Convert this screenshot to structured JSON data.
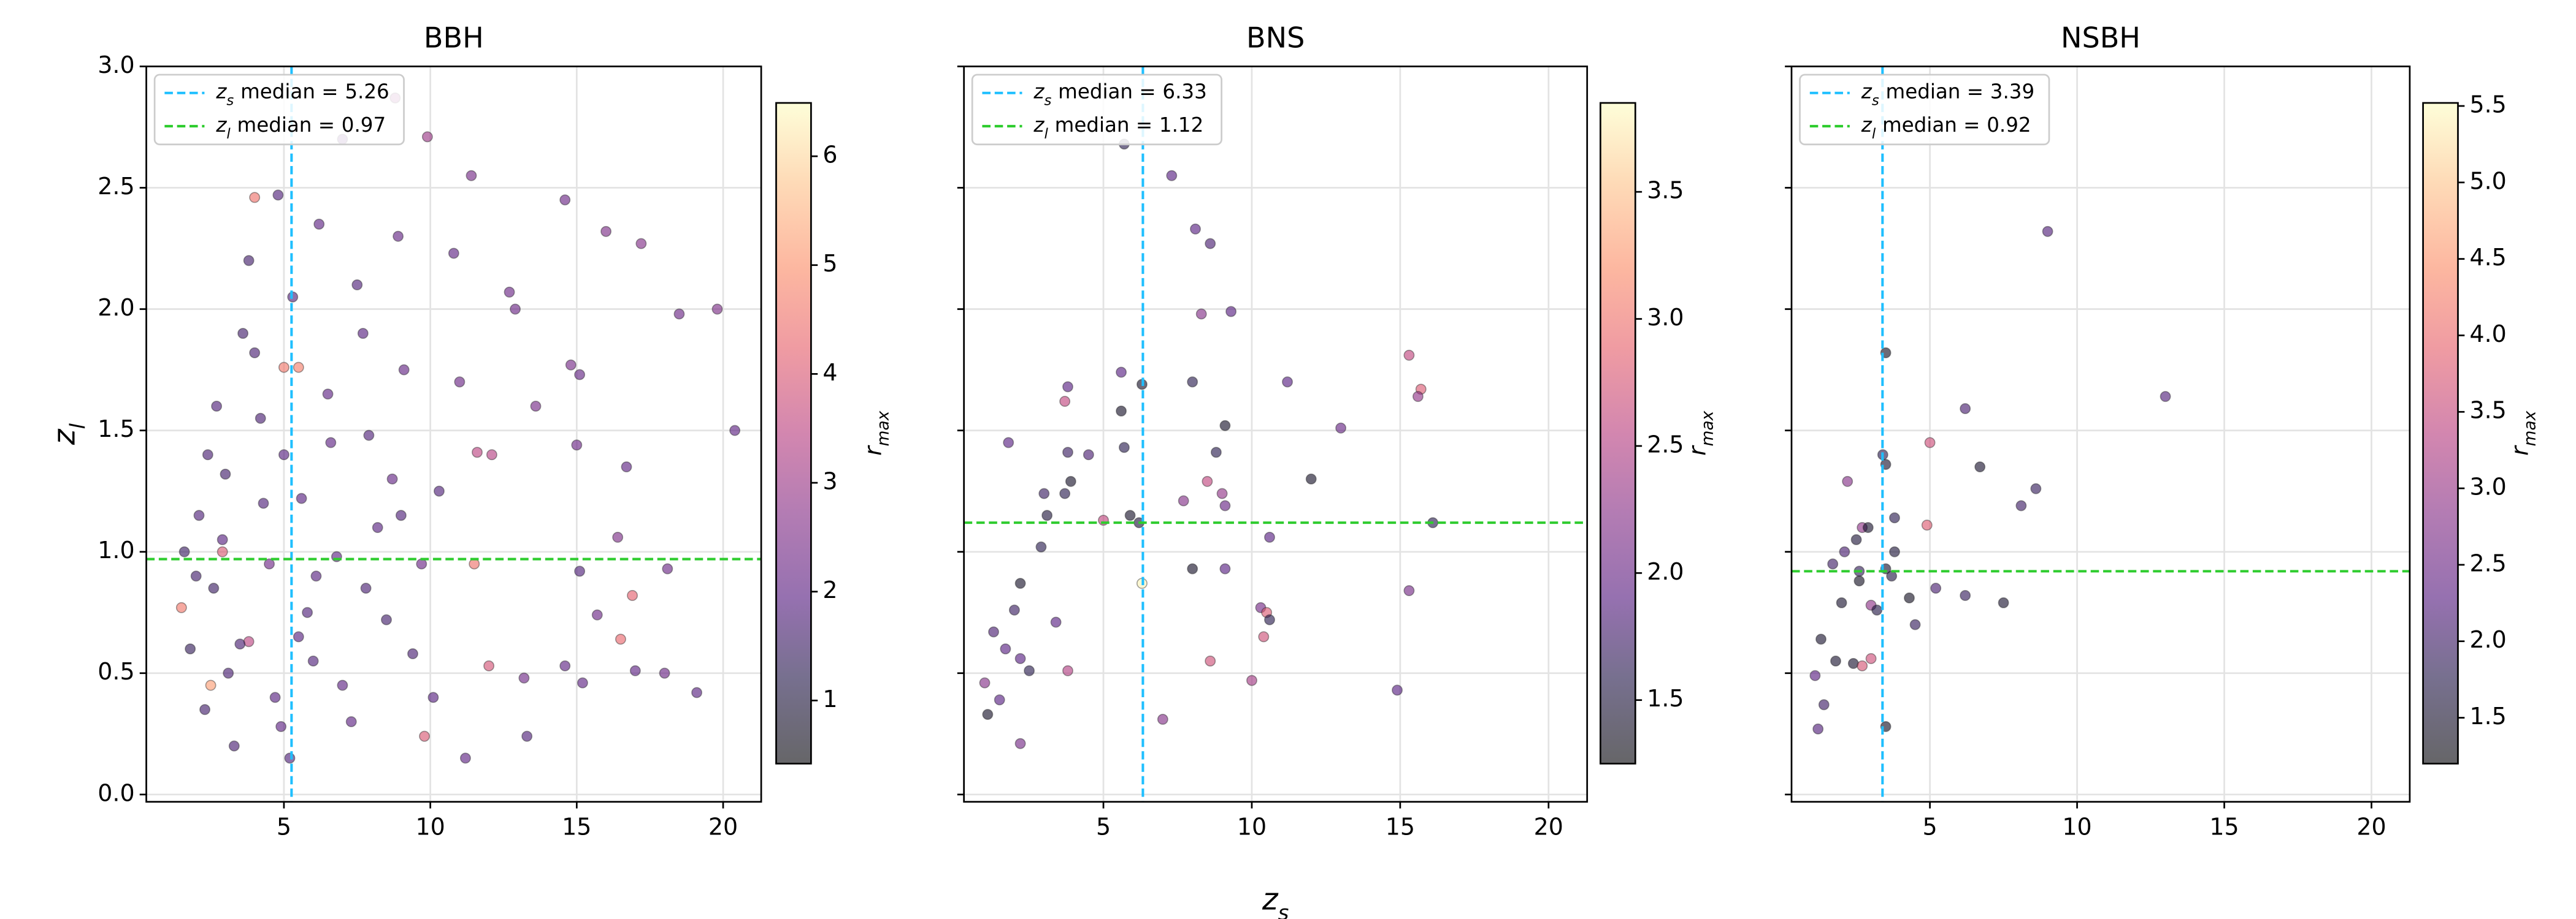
{
  "chart_data": [
    {
      "type": "scatter",
      "title": "BBH",
      "x": [
        20.4,
        19.8,
        18.5,
        17.2,
        16.0,
        14.6,
        11.4,
        9.9,
        8.8,
        7.0,
        4.0,
        4.8,
        10.8,
        12.7,
        12.9,
        14.8,
        15.1,
        13.6,
        15.0,
        16.7,
        11.6,
        12.1,
        16.4,
        18.1,
        15.1,
        16.9,
        16.5,
        15.7,
        17.0,
        18.0,
        19.1,
        13.3,
        11.2,
        9.8,
        12.0,
        14.6,
        15.2,
        13.2,
        11.5,
        5.0,
        5.5,
        2.9,
        2.5,
        3.8,
        1.5,
        2.1,
        3.0,
        4.2,
        5.6,
        6.8,
        7.9,
        9.1,
        2.6,
        3.5,
        4.7,
        6.0,
        7.3,
        8.5,
        9.7,
        1.8,
        2.9,
        4.0,
        5.3,
        6.5,
        7.7,
        8.9,
        10.3,
        2.3,
        3.3,
        4.5,
        5.8,
        7.0,
        8.2,
        9.4,
        1.6,
        2.7,
        3.8,
        5.0,
        6.2,
        7.5,
        8.7,
        10.1,
        11.0,
        2.0,
        3.1,
        4.3,
        5.5,
        6.6,
        7.8,
        9.0,
        3.6,
        4.9,
        6.1,
        2.4,
        5.2
      ],
      "y": [
        1.5,
        2.0,
        1.98,
        2.27,
        2.32,
        2.45,
        2.55,
        2.71,
        2.87,
        2.7,
        2.46,
        2.47,
        2.23,
        2.07,
        2.0,
        1.77,
        1.73,
        1.6,
        1.44,
        1.35,
        1.41,
        1.4,
        1.06,
        0.93,
        0.92,
        0.82,
        0.64,
        0.74,
        0.51,
        0.5,
        0.42,
        0.24,
        0.15,
        0.24,
        0.53,
        0.53,
        0.46,
        0.48,
        0.95,
        1.76,
        1.76,
        1.0,
        0.45,
        0.63,
        0.77,
        1.15,
        1.32,
        1.55,
        1.22,
        0.98,
        1.48,
        1.75,
        0.85,
        0.62,
        0.4,
        0.55,
        0.3,
        0.72,
        0.95,
        0.6,
        1.05,
        1.82,
        2.05,
        1.65,
        1.9,
        2.3,
        1.25,
        0.35,
        0.2,
        0.95,
        0.75,
        0.45,
        1.1,
        0.58,
        1.0,
        1.6,
        2.2,
        1.4,
        2.35,
        2.1,
        1.3,
        0.4,
        1.7,
        0.9,
        0.5,
        1.2,
        0.65,
        1.45,
        0.85,
        1.15,
        1.9,
        0.28,
        0.9,
        1.4,
        0.15
      ],
      "c": [
        2.0,
        2.5,
        2.2,
        2.6,
        2.5,
        2.2,
        2.4,
        3.0,
        3.0,
        2.0,
        4.5,
        1.8,
        2.0,
        2.2,
        2.2,
        2.4,
        2.1,
        2.4,
        2.2,
        2.0,
        3.5,
        3.4,
        2.5,
        2.2,
        1.8,
        4.2,
        4.3,
        2.2,
        2.0,
        2.2,
        1.9,
        1.8,
        2.0,
        4.0,
        3.9,
        2.0,
        2.0,
        2.3,
        4.5,
        4.6,
        4.7,
        4.0,
        5.2,
        3.5,
        4.6,
        1.8,
        1.6,
        1.7,
        1.9,
        2.0,
        1.8,
        2.1,
        1.5,
        1.7,
        1.9,
        1.8,
        2.0,
        1.6,
        2.2,
        1.4,
        1.9,
        1.7,
        1.8,
        2.0,
        1.9,
        2.1,
        1.8,
        1.6,
        1.7,
        2.3,
        1.8,
        2.0,
        1.9,
        1.7,
        1.5,
        1.8,
        1.6,
        1.9,
        2.0,
        1.8,
        2.1,
        1.9,
        2.2,
        1.6,
        1.7,
        1.8,
        1.9,
        2.0,
        1.7,
        1.8,
        1.6,
        2.0,
        1.9,
        1.7,
        1.8
      ],
      "xlim": [
        0.3,
        21.3
      ],
      "ylim": [
        -0.03,
        3.0
      ],
      "xticks": [
        5,
        10,
        15,
        20
      ],
      "yticks": [
        {
          "value": 0,
          "label": "0.0"
        },
        0.5,
        {
          "value": 1,
          "label": "1.0"
        },
        1.5,
        {
          "value": 2,
          "label": "2.0"
        },
        2.5,
        {
          "value": 3,
          "label": "3.0"
        }
      ],
      "ylabel": {
        "base": "z",
        "sub": "l"
      },
      "grid": true,
      "colormap": "magma",
      "alpha": 0.6,
      "clim": [
        0.42,
        6.49
      ],
      "cticks": [
        1,
        2,
        3,
        4,
        5,
        6
      ],
      "clabel": {
        "base": "r",
        "sub": "max"
      },
      "median_lines": [
        {
          "var": "z",
          "sub": "s",
          "label": "median =",
          "value": 5.26,
          "axis": "x",
          "color": "#1ebfff"
        },
        {
          "var": "z",
          "sub": "l",
          "label": "median =",
          "value": 0.97,
          "axis": "y",
          "color": "#2ecc2e"
        }
      ]
    },
    {
      "type": "scatter",
      "title": "BNS",
      "x": [
        5.7,
        7.3,
        8.1,
        8.6,
        8.3,
        9.3,
        15.3,
        15.7,
        15.6,
        5.6,
        6.3,
        8.0,
        11.2,
        13.0,
        12.0,
        9.1,
        8.8,
        3.8,
        3.7,
        5.6,
        1.8,
        3.8,
        4.5,
        5.7,
        3.0,
        3.7,
        3.9,
        2.9,
        3.1,
        5.0,
        5.9,
        6.2,
        8.5,
        9.0,
        9.1,
        7.7,
        8.0,
        9.1,
        10.6,
        16.1,
        10.3,
        10.5,
        10.6,
        10.4,
        15.3,
        2.2,
        1.3,
        2.0,
        1.7,
        3.4,
        2.2,
        2.5,
        3.8,
        1.0,
        1.5,
        1.1,
        2.2,
        7.0,
        8.6,
        10.0,
        14.9,
        6.3
      ],
      "y": [
        2.68,
        2.55,
        2.33,
        2.27,
        1.98,
        1.99,
        1.81,
        1.67,
        1.64,
        1.74,
        1.69,
        1.7,
        1.7,
        1.51,
        1.3,
        1.52,
        1.41,
        1.68,
        1.62,
        1.58,
        1.45,
        1.41,
        1.4,
        1.43,
        1.24,
        1.24,
        1.29,
        1.02,
        1.15,
        1.13,
        1.15,
        1.12,
        1.29,
        1.24,
        1.19,
        1.21,
        0.93,
        0.93,
        1.06,
        1.12,
        0.77,
        0.75,
        0.72,
        0.65,
        0.84,
        0.87,
        0.67,
        0.76,
        0.6,
        0.71,
        0.56,
        0.51,
        0.51,
        0.46,
        0.39,
        0.33,
        0.21,
        0.31,
        0.55,
        0.47,
        0.43,
        0.87
      ],
      "c": [
        1.6,
        1.9,
        1.9,
        1.8,
        2.2,
        1.9,
        2.6,
        2.8,
        2.3,
        1.9,
        1.4,
        1.6,
        1.9,
        2.0,
        1.4,
        1.4,
        1.6,
        1.9,
        2.6,
        1.4,
        1.9,
        1.7,
        1.8,
        1.6,
        1.7,
        1.6,
        1.4,
        1.6,
        1.5,
        2.6,
        1.4,
        1.5,
        2.6,
        2.3,
        2.0,
        2.2,
        1.4,
        1.9,
        1.9,
        1.6,
        2.1,
        2.8,
        1.6,
        2.7,
        2.1,
        1.4,
        1.8,
        1.7,
        1.9,
        1.9,
        1.9,
        1.6,
        2.5,
        2.2,
        1.9,
        1.4,
        2.1,
        2.2,
        2.7,
        2.4,
        1.9,
        3.8
      ],
      "xlim": [
        0.3,
        21.3
      ],
      "ylim": [
        -0.03,
        3.0
      ],
      "xticks": [
        5,
        10,
        15,
        20
      ],
      "xlabel": {
        "base": "z",
        "sub": "s"
      },
      "grid": true,
      "colormap": "magma",
      "alpha": 0.6,
      "clim": [
        1.25,
        3.85
      ],
      "cticks": [
        1.5,
        {
          "value": 2,
          "label": "2.0"
        },
        2.5,
        {
          "value": 3,
          "label": "3.0"
        },
        3.5
      ],
      "clabel": {
        "base": "r",
        "sub": "max"
      },
      "median_lines": [
        {
          "var": "z",
          "sub": "s",
          "label": "median =",
          "value": 6.33,
          "axis": "x",
          "color": "#1ebfff"
        },
        {
          "var": "z",
          "sub": "l",
          "label": "median =",
          "value": 1.12,
          "axis": "y",
          "color": "#2ecc2e"
        }
      ]
    },
    {
      "type": "scatter",
      "title": "NSBH",
      "x": [
        9.0,
        13.0,
        6.2,
        3.5,
        3.4,
        3.5,
        6.7,
        2.2,
        8.6,
        8.1,
        3.8,
        4.9,
        5.0,
        2.7,
        2.9,
        2.5,
        2.1,
        3.8,
        1.7,
        2.6,
        2.6,
        3.5,
        3.7,
        5.2,
        6.2,
        7.5,
        4.3,
        2.0,
        3.0,
        3.2,
        4.5,
        1.3,
        1.8,
        2.4,
        2.7,
        3.0,
        1.1,
        1.4,
        1.2,
        3.5
      ],
      "y": [
        2.32,
        1.64,
        1.59,
        1.82,
        1.4,
        1.36,
        1.35,
        1.29,
        1.26,
        1.19,
        1.14,
        1.11,
        1.45,
        1.1,
        1.1,
        1.05,
        1.0,
        1.0,
        0.95,
        0.92,
        0.88,
        0.93,
        0.9,
        0.85,
        0.82,
        0.79,
        0.81,
        0.79,
        0.78,
        0.76,
        0.7,
        0.64,
        0.55,
        0.54,
        0.53,
        0.56,
        0.49,
        0.37,
        0.27,
        0.28
      ],
      "c": [
        2.2,
        2.2,
        2.1,
        1.4,
        1.8,
        1.5,
        1.5,
        2.8,
        1.9,
        2.0,
        1.8,
        3.8,
        3.6,
        2.9,
        1.5,
        1.6,
        2.1,
        1.6,
        2.0,
        1.9,
        1.4,
        1.5,
        1.7,
        2.1,
        1.9,
        1.5,
        1.4,
        1.5,
        2.9,
        1.7,
        1.9,
        1.5,
        1.5,
        1.5,
        3.7,
        3.6,
        2.3,
        2.0,
        2.2,
        1.4
      ],
      "xlim": [
        0.3,
        21.3
      ],
      "ylim": [
        -0.03,
        3.0
      ],
      "xticks": [
        5,
        10,
        15,
        20
      ],
      "grid": true,
      "colormap": "magma",
      "alpha": 0.6,
      "clim": [
        1.2,
        5.52
      ],
      "cticks": [
        1.5,
        {
          "value": 2,
          "label": "2.0"
        },
        2.5,
        {
          "value": 3,
          "label": "3.0"
        },
        3.5,
        {
          "value": 4,
          "label": "4.0"
        },
        4.5,
        {
          "value": 5,
          "label": "5.0"
        },
        5.5
      ],
      "clabel": {
        "base": "r",
        "sub": "max"
      },
      "median_lines": [
        {
          "var": "z",
          "sub": "s",
          "label": "median =",
          "value": 3.39,
          "axis": "x",
          "color": "#1ebfff"
        },
        {
          "var": "z",
          "sub": "l",
          "label": "median =",
          "value": 0.92,
          "axis": "y",
          "color": "#2ecc2e"
        }
      ]
    }
  ]
}
